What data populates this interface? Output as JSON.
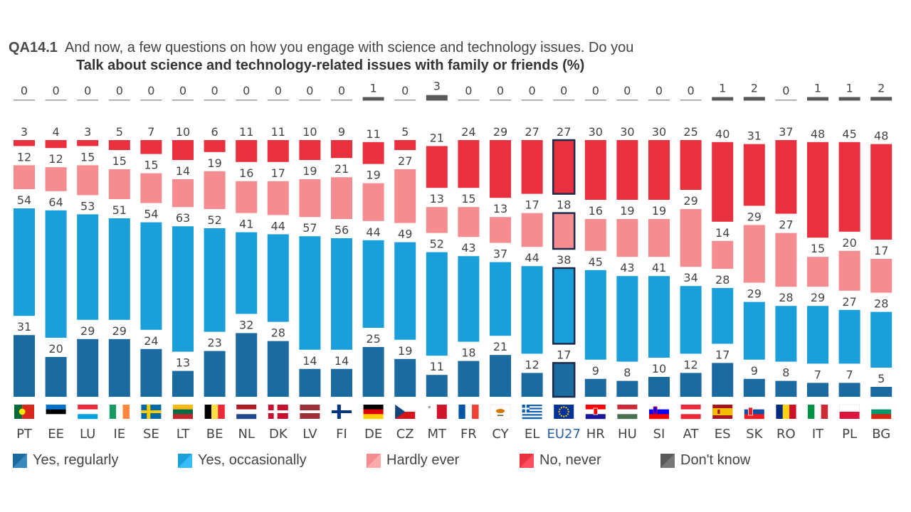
{
  "header": {
    "question_id": "QA14.1",
    "question_text": "And now, a few questions on how you engage with science and technology issues. Do you",
    "subtitle": "Talk about science and technology-related issues with family or friends  (%)"
  },
  "colors": {
    "regularly": "#1b6aa0",
    "occasionally": "#1b9fdb",
    "hardly": "#f58c8f",
    "never": "#e8303f",
    "dont_know": "#595959"
  },
  "legend": [
    {
      "key": "regularly",
      "label": "Yes, regularly"
    },
    {
      "key": "occasionally",
      "label": "Yes, occasionally"
    },
    {
      "key": "hardly",
      "label": "Hardly ever"
    },
    {
      "key": "never",
      "label": "No, never"
    },
    {
      "key": "dont_know",
      "label": "Don't know"
    }
  ],
  "chart_data": {
    "type": "bar",
    "stacked": true,
    "title": "Talk about science and technology-related issues with family or friends  (%)",
    "categories": [
      "PT",
      "EE",
      "LU",
      "IE",
      "SE",
      "LT",
      "BE",
      "NL",
      "DK",
      "LV",
      "FI",
      "DE",
      "CZ",
      "MT",
      "FR",
      "CY",
      "EL",
      "EU27",
      "HR",
      "HU",
      "SI",
      "AT",
      "ES",
      "SK",
      "RO",
      "IT",
      "PL",
      "BG"
    ],
    "highlight": "EU27",
    "series": [
      {
        "key": "regularly",
        "name": "Yes, regularly",
        "values": [
          31,
          20,
          29,
          29,
          24,
          13,
          23,
          32,
          28,
          14,
          14,
          25,
          19,
          11,
          18,
          21,
          12,
          17,
          9,
          8,
          10,
          12,
          17,
          9,
          8,
          7,
          7,
          5
        ]
      },
      {
        "key": "occasionally",
        "name": "Yes, occasionally",
        "values": [
          54,
          64,
          53,
          51,
          54,
          63,
          52,
          41,
          44,
          57,
          56,
          44,
          49,
          52,
          43,
          37,
          44,
          38,
          45,
          43,
          41,
          34,
          28,
          29,
          28,
          29,
          27,
          28
        ]
      },
      {
        "key": "hardly",
        "name": "Hardly ever",
        "values": [
          12,
          12,
          15,
          15,
          15,
          14,
          19,
          16,
          17,
          19,
          21,
          19,
          27,
          13,
          15,
          13,
          17,
          18,
          16,
          19,
          19,
          29,
          14,
          29,
          27,
          15,
          20,
          17
        ]
      },
      {
        "key": "never",
        "name": "No, never",
        "values": [
          3,
          4,
          3,
          5,
          7,
          10,
          6,
          11,
          11,
          10,
          9,
          11,
          5,
          21,
          24,
          29,
          27,
          27,
          30,
          30,
          30,
          25,
          40,
          31,
          37,
          48,
          45,
          48
        ]
      },
      {
        "key": "dont_know",
        "name": "Don't know",
        "values": [
          0,
          0,
          0,
          0,
          0,
          0,
          0,
          0,
          0,
          0,
          0,
          1,
          0,
          3,
          0,
          0,
          0,
          0,
          0,
          0,
          0,
          0,
          1,
          2,
          0,
          1,
          1,
          2
        ]
      }
    ],
    "ylim": [
      0,
      100
    ],
    "grid": false,
    "legend_position": "bottom"
  }
}
